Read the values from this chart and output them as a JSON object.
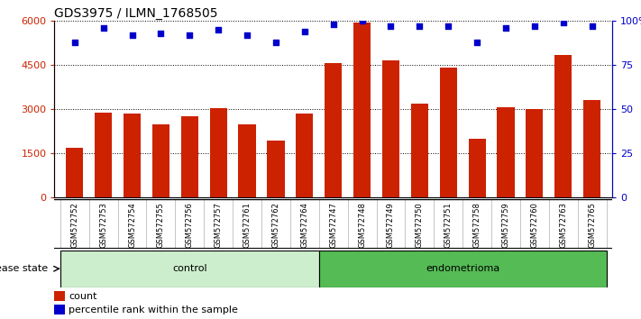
{
  "title": "GDS3975 / ILMN_1768505",
  "samples": [
    "GSM572752",
    "GSM572753",
    "GSM572754",
    "GSM572755",
    "GSM572756",
    "GSM572757",
    "GSM572761",
    "GSM572762",
    "GSM572764",
    "GSM572747",
    "GSM572748",
    "GSM572749",
    "GSM572750",
    "GSM572751",
    "GSM572758",
    "GSM572759",
    "GSM572760",
    "GSM572763",
    "GSM572765"
  ],
  "counts": [
    1700,
    2900,
    2850,
    2500,
    2750,
    3050,
    2500,
    1950,
    2850,
    4550,
    5950,
    4650,
    3200,
    4400,
    2000,
    3080,
    3020,
    4850,
    3300
  ],
  "percentiles": [
    88,
    96,
    92,
    93,
    92,
    95,
    92,
    88,
    94,
    98,
    100,
    97,
    97,
    97,
    88,
    96,
    97,
    99,
    97
  ],
  "bar_color": "#cc2200",
  "dot_color": "#0000cc",
  "ylim_left": [
    0,
    6000
  ],
  "ylim_right": [
    0,
    100
  ],
  "yticks_left": [
    0,
    1500,
    3000,
    4500,
    6000
  ],
  "yticks_right": [
    0,
    25,
    50,
    75,
    100
  ],
  "control_count": 9,
  "endometrioma_count": 10,
  "control_label": "control",
  "endometrioma_label": "endometrioma",
  "disease_state_label": "disease state",
  "legend_count_label": "count",
  "legend_percentile_label": "percentile rank within the sample",
  "control_bg": "#cceecc",
  "endometrioma_bg": "#55bb55",
  "sample_bg": "#cccccc"
}
